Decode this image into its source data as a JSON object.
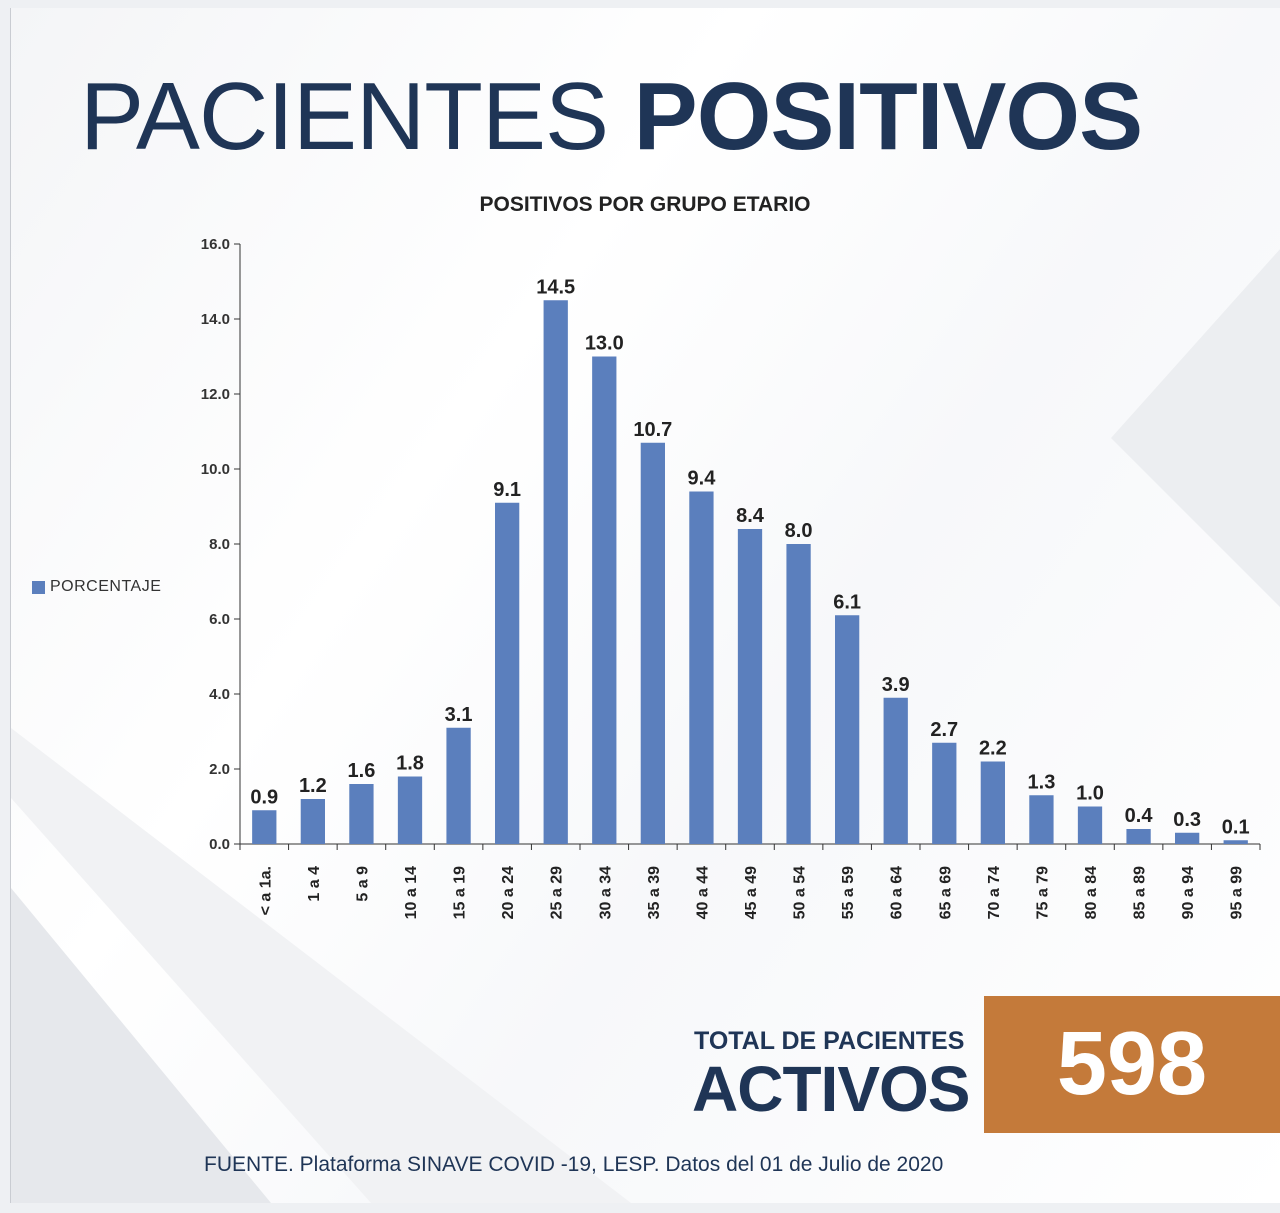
{
  "header": {
    "title_light": "PACIENTES ",
    "title_bold": "POSITIVOS"
  },
  "chart_data": {
    "type": "bar",
    "title": "POSITIVOS POR GRUPO ETARIO",
    "categories": [
      "< a 1a.",
      "1 a 4",
      "5 a 9",
      "10 a 14",
      "15 a 19",
      "20 a 24",
      "25 a 29",
      "30 a 34",
      "35 a 39",
      "40 a 44",
      "45 a 49",
      "50 a 54",
      "55 a 59",
      "60 a 64",
      "65 a 69",
      "70 a 74",
      "75 a 79",
      "80 a 84",
      "85 a 89",
      "90 a 94",
      "95 a 99"
    ],
    "series": [
      {
        "name": "PORCENTAJE",
        "values": [
          0.9,
          1.2,
          1.6,
          1.8,
          3.1,
          9.1,
          14.5,
          13.0,
          10.7,
          9.4,
          8.4,
          8.0,
          6.1,
          3.9,
          2.7,
          2.2,
          1.3,
          1.0,
          0.4,
          0.3,
          0.1
        ]
      }
    ],
    "yticks": [
      "0.0",
      "2.0",
      "4.0",
      "6.0",
      "8.0",
      "10.0",
      "12.0",
      "14.0",
      "16.0"
    ],
    "ylim": [
      0,
      16
    ],
    "legend": "left",
    "bar_color": "#5b7fbd",
    "grid": false
  },
  "summary": {
    "label_top": "TOTAL DE PACIENTES",
    "label_big": "ACTIVOS",
    "total": "598",
    "box_color": "#c47a3a"
  },
  "footer": {
    "source": "FUENTE. Plataforma SINAVE COVID -19, LESP. Datos del 01 de Julio de 2020"
  }
}
